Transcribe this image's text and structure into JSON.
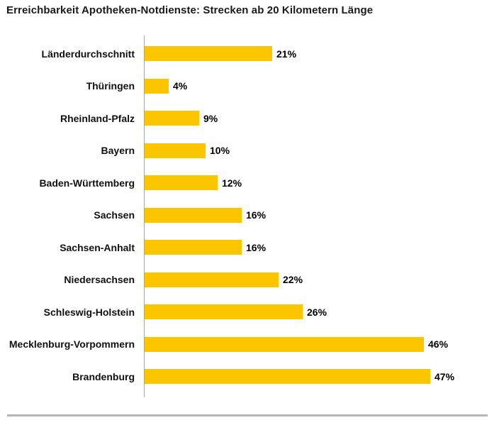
{
  "chart_data": {
    "type": "bar",
    "orientation": "horizontal",
    "title": "Erreichbarkeit Apotheken-Notdienste: Strecken ab 20 Kilometern Länge",
    "categories": [
      "Länderdurchschnitt",
      "Thüringen",
      "Rheinland-Pfalz",
      "Bayern",
      "Baden-Württemberg",
      "Sachsen",
      "Sachsen-Anhalt",
      "Niedersachsen",
      "Schleswig-Holstein",
      "Mecklenburg-Vorpommern",
      "Brandenburg"
    ],
    "values": [
      21,
      4,
      9,
      10,
      12,
      16,
      16,
      22,
      26,
      46,
      47
    ],
    "value_labels": [
      "21%",
      "4%",
      "9%",
      "10%",
      "12%",
      "16%",
      "16%",
      "22%",
      "26%",
      "46%",
      "47%"
    ],
    "unit": "%",
    "xlabel": "",
    "ylabel": "",
    "xlim": [
      0,
      47
    ],
    "grid": false,
    "legend": false,
    "bar_color": "#FBC500",
    "axis_line_color": "#A8A8A8",
    "divider_color": "#B5B5B5",
    "label_color": "#111111",
    "title_color": "#1A1A1A"
  }
}
